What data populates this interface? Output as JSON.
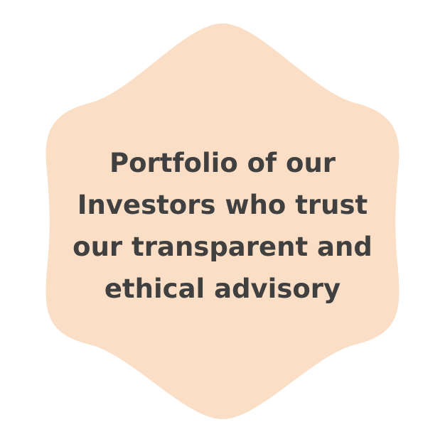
{
  "shape": {
    "fill_color": "#fadec5"
  },
  "text": {
    "color": "#404040",
    "lines": [
      "Portfolio of our",
      "Investors who trust",
      "our transparent and",
      "ethical advisory"
    ]
  }
}
